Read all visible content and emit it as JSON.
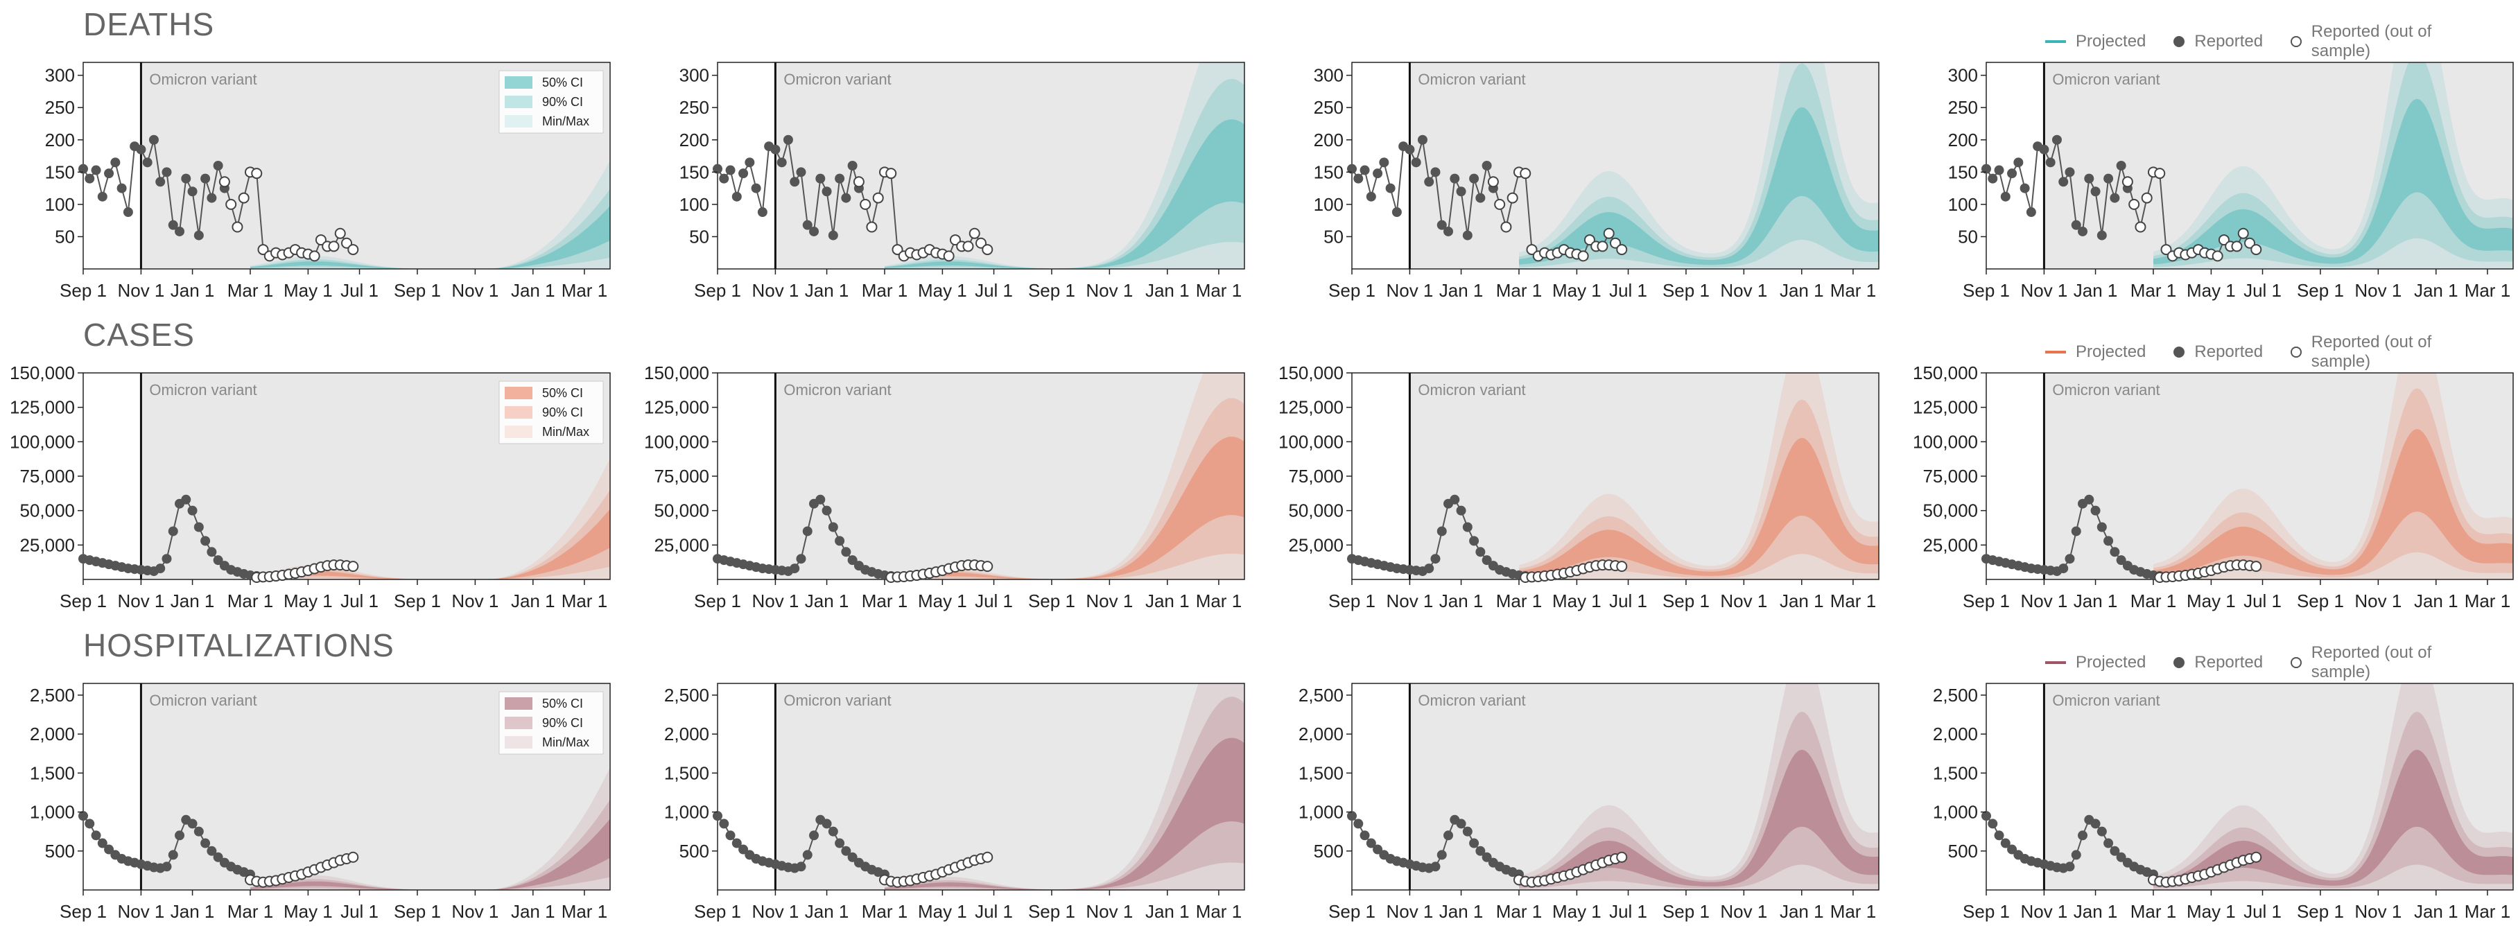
{
  "sections": [
    {
      "title": "DEATHS",
      "color": "#3db5b5",
      "legend": {
        "projected": "Projected",
        "reported": "Reported",
        "oos": "Reported (out of sample)"
      },
      "ci_legend": [
        "50% CI",
        "90% CI",
        "Min/Max"
      ],
      "y_ticks": [
        {
          "v": 50,
          "label": "50"
        },
        {
          "v": 100,
          "label": "100"
        },
        {
          "v": 150,
          "label": "150"
        },
        {
          "v": 200,
          "label": "200"
        },
        {
          "v": 250,
          "label": "250"
        },
        {
          "v": 300,
          "label": "300"
        }
      ]
    },
    {
      "title": "CASES",
      "color": "#e8734f",
      "legend": {
        "projected": "Projected",
        "reported": "Reported",
        "oos": "Reported (out of sample)"
      },
      "ci_legend": [
        "50% CI",
        "90% CI",
        "Min/Max"
      ],
      "y_ticks": [
        {
          "v": 25000,
          "label": "25,000"
        },
        {
          "v": 50000,
          "label": "50,000"
        },
        {
          "v": 75000,
          "label": "75,000"
        },
        {
          "v": 100000,
          "label": "100,000"
        },
        {
          "v": 125000,
          "label": "125,000"
        },
        {
          "v": 150000,
          "label": "150,000"
        }
      ]
    },
    {
      "title": "HOSPITALIZATIONS",
      "color": "#a05565",
      "legend": {
        "projected": "Projected",
        "reported": "Reported",
        "oos": "Reported (out of sample)"
      },
      "ci_legend": [
        "50% CI",
        "90% CI",
        "Min/Max"
      ],
      "y_ticks": [
        {
          "v": 500,
          "label": "500"
        },
        {
          "v": 1000,
          "label": "1,000"
        },
        {
          "v": 1500,
          "label": "1,500"
        },
        {
          "v": 2000,
          "label": "2,000"
        },
        {
          "v": 2500,
          "label": "2,500"
        }
      ]
    }
  ],
  "annotation": "Omicron variant",
  "x_ticks": [
    "Sep 1",
    "Nov 1",
    "Jan 1",
    "Mar 1",
    "May 1",
    "Jul 1",
    "Sep 1",
    "Nov 1",
    "Jan 1",
    "Mar 1"
  ],
  "chart_data": [
    {
      "type": "area",
      "metric": "Deaths",
      "x_unit": "weeks since Sep 1, 2021",
      "x_range": [
        0,
        82
      ],
      "ylim": [
        0,
        320
      ],
      "omicron_start_week": 9,
      "reported": {
        "x": [
          0,
          1,
          2,
          3,
          4,
          5,
          6,
          7,
          8,
          9,
          10,
          11,
          12,
          13,
          14,
          15,
          16,
          17,
          18,
          19,
          20,
          21,
          22
        ],
        "y": [
          155,
          140,
          153,
          112,
          148,
          165,
          125,
          88,
          190,
          185,
          165,
          200,
          135,
          150,
          68,
          58,
          140,
          120,
          52,
          140,
          110,
          160,
          125
        ]
      },
      "oos": {
        "x": [
          22,
          23,
          24,
          25,
          26,
          27,
          28,
          29,
          30,
          31,
          32,
          33,
          34,
          35,
          36,
          37,
          38,
          39,
          40,
          41,
          42
        ],
        "y": [
          135,
          100,
          65,
          110,
          150,
          148,
          30,
          20,
          25,
          22,
          25,
          30,
          25,
          23,
          20,
          45,
          35,
          35,
          55,
          40,
          30
        ]
      },
      "scenarios": [
        {
          "median_peak": 80,
          "peak_week": 82
        },
        {
          "median_peak": 190,
          "peak_week": 80
        },
        {
          "median_peak": 195,
          "peak_week": 70
        },
        {
          "median_peak": 205,
          "peak_week": 67
        }
      ]
    },
    {
      "type": "area",
      "metric": "Cases",
      "x_unit": "weeks since Sep 1, 2021",
      "x_range": [
        0,
        82
      ],
      "ylim": [
        0,
        150000
      ],
      "omicron_start_week": 9,
      "reported": {
        "x": [
          0,
          1,
          2,
          3,
          4,
          5,
          6,
          7,
          8,
          9,
          10,
          11,
          12,
          13,
          14,
          15,
          16,
          17,
          18,
          19,
          20,
          21,
          22,
          23,
          24,
          25,
          26,
          27
        ],
        "y": [
          15000,
          14000,
          13000,
          12000,
          11000,
          10000,
          9000,
          8000,
          7500,
          7000,
          6500,
          6000,
          8000,
          15000,
          35000,
          55000,
          58000,
          50000,
          38000,
          28000,
          20000,
          14000,
          10000,
          7000,
          5500,
          4000,
          3000,
          2500
        ]
      },
      "oos": {
        "x": [
          27,
          28,
          29,
          30,
          31,
          32,
          33,
          34,
          35,
          36,
          37,
          38,
          39,
          40,
          41,
          42
        ],
        "y": [
          1500,
          1800,
          2000,
          2500,
          3000,
          3800,
          4500,
          5500,
          6500,
          7800,
          9000,
          10000,
          10500,
          10500,
          10000,
          9500
        ]
      },
      "scenarios": [
        {
          "median_peak": 42000,
          "peak_week": 82
        },
        {
          "median_peak": 85000,
          "peak_week": 80
        },
        {
          "median_peak": 80000,
          "peak_week": 70
        },
        {
          "median_peak": 85000,
          "peak_week": 67
        }
      ]
    },
    {
      "type": "area",
      "metric": "Hospitalizations",
      "x_unit": "weeks since Sep 1, 2021",
      "x_range": [
        0,
        82
      ],
      "ylim": [
        0,
        2650
      ],
      "omicron_start_week": 9,
      "reported": {
        "x": [
          0,
          1,
          2,
          3,
          4,
          5,
          6,
          7,
          8,
          9,
          10,
          11,
          12,
          13,
          14,
          15,
          16,
          17,
          18,
          19,
          20,
          21,
          22,
          23,
          24,
          25,
          26
        ],
        "y": [
          950,
          850,
          700,
          600,
          520,
          450,
          400,
          370,
          350,
          330,
          310,
          290,
          280,
          300,
          450,
          700,
          900,
          850,
          750,
          600,
          500,
          420,
          350,
          300,
          260,
          230,
          200
        ]
      },
      "oos": {
        "x": [
          26,
          27,
          28,
          29,
          30,
          31,
          32,
          33,
          34,
          35,
          36,
          37,
          38,
          39,
          40,
          41,
          42
        ],
        "y": [
          130,
          110,
          100,
          110,
          120,
          140,
          160,
          180,
          200,
          230,
          260,
          290,
          320,
          350,
          380,
          400,
          420
        ]
      },
      "scenarios": [
        {
          "median_peak": 750,
          "peak_week": 82
        },
        {
          "median_peak": 1600,
          "peak_week": 80
        },
        {
          "median_peak": 1400,
          "peak_week": 70
        },
        {
          "median_peak": 1400,
          "peak_week": 67
        }
      ]
    }
  ]
}
